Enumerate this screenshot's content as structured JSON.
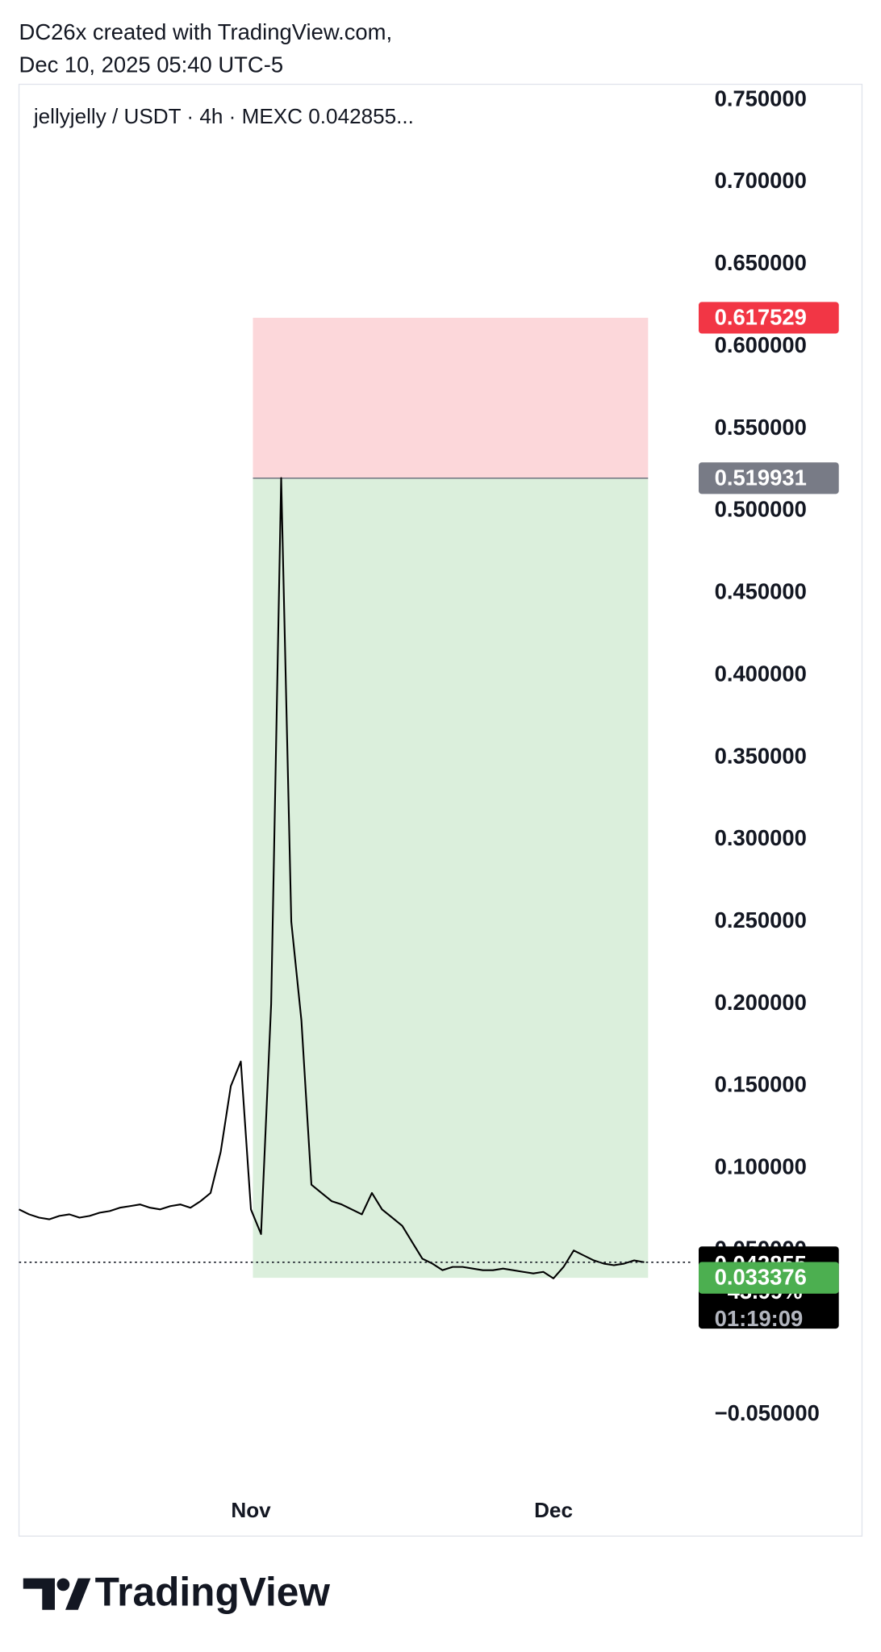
{
  "header": {
    "line1": "DC26x created with TradingView.com,",
    "line2": "Dec 10, 2025 05:40 UTC-5"
  },
  "chart_data": {
    "type": "line",
    "title": "jellyjelly / USDT · 4h · MEXC  0.042855...",
    "color": "#000000",
    "categories": [
      null,
      null,
      null,
      null,
      null,
      null,
      null,
      null,
      null,
      null,
      null,
      null,
      null,
      null,
      null,
      null,
      null,
      null,
      null,
      null,
      null,
      null,
      null,
      "Nov",
      null,
      null,
      null,
      null,
      null,
      null,
      null,
      null,
      null,
      null,
      null,
      null,
      null,
      null,
      null,
      null,
      null,
      null,
      null,
      null,
      null,
      null,
      null,
      null,
      null,
      null,
      null,
      null,
      null,
      "Dec",
      null,
      null,
      null,
      null,
      null,
      null,
      null,
      null,
      null
    ],
    "values": [
      0.075,
      0.072,
      0.07,
      0.069,
      0.071,
      0.072,
      0.07,
      0.071,
      0.073,
      0.074,
      0.076,
      0.077,
      0.078,
      0.076,
      0.075,
      0.077,
      0.078,
      0.076,
      0.08,
      0.085,
      0.11,
      0.15,
      0.165,
      0.075,
      0.06,
      0.2,
      0.52,
      0.25,
      0.19,
      0.09,
      0.085,
      0.08,
      0.078,
      0.075,
      0.072,
      0.085,
      0.075,
      0.07,
      0.065,
      0.055,
      0.045,
      0.042,
      0.038,
      0.04,
      0.04,
      0.039,
      0.038,
      0.038,
      0.039,
      0.038,
      0.037,
      0.036,
      0.037,
      0.033,
      0.04,
      0.05,
      0.047,
      0.044,
      0.042,
      0.041,
      0.042,
      0.044,
      0.042855
    ],
    "ylim": [
      -0.1238,
      0.7596
    ],
    "yticks": [
      {
        "value": 0.75,
        "label": "0.750000"
      },
      {
        "value": 0.7,
        "label": "0.700000"
      },
      {
        "value": 0.65,
        "label": "0.650000"
      },
      {
        "value": 0.6,
        "label": "0.600000"
      },
      {
        "value": 0.55,
        "label": "0.550000"
      },
      {
        "value": 0.5,
        "label": "0.500000"
      },
      {
        "value": 0.45,
        "label": "0.450000"
      },
      {
        "value": 0.4,
        "label": "0.400000"
      },
      {
        "value": 0.35,
        "label": "0.350000"
      },
      {
        "value": 0.3,
        "label": "0.300000"
      },
      {
        "value": 0.25,
        "label": "0.250000"
      },
      {
        "value": 0.2,
        "label": "0.200000"
      },
      {
        "value": 0.15,
        "label": "0.150000"
      },
      {
        "value": 0.1,
        "label": "0.100000"
      },
      {
        "value": 0.05,
        "label": "0.050000"
      },
      {
        "value": -0.05,
        "label": "−0.050000"
      }
    ],
    "position": {
      "stop": 0.617529,
      "entry": 0.519931,
      "target": 0.033376,
      "stop_color": "#f23645",
      "entry_color": "#787b86",
      "target_color": "#4caf50"
    },
    "last_price": 0.042855,
    "change": {
      "value": -43.99,
      "label": "−43.99%"
    },
    "countdown": "01:19:09"
  },
  "footer": {
    "logo": "TradingView"
  }
}
